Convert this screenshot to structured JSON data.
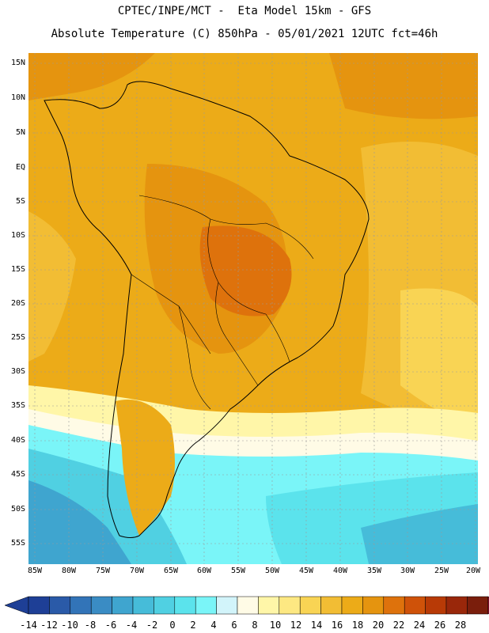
{
  "header": {
    "line1": "CPTEC/INPE/MCT -  Eta Model 15km - GFS",
    "line2": "Absolute Temperature (C) 850hPa - 05/01/2021 12UTC fct=46h"
  },
  "map": {
    "region": "South America",
    "lat_labels": [
      "15N",
      "10N",
      "5N",
      "EQ",
      "5S",
      "10S",
      "15S",
      "20S",
      "25S",
      "30S",
      "35S",
      "40S",
      "45S",
      "50S",
      "55S"
    ],
    "lon_labels": [
      "85W",
      "80W",
      "75W",
      "70W",
      "65W",
      "60W",
      "55W",
      "50W",
      "45W",
      "40W",
      "35W",
      "30W",
      "25W",
      "20W"
    ]
  },
  "colorbar": {
    "labels": [
      "-14",
      "-12",
      "-10",
      "-8",
      "-6",
      "-4",
      "-2",
      "0",
      "2",
      "4",
      "6",
      "8",
      "10",
      "12",
      "14",
      "16",
      "18",
      "20",
      "22",
      "24",
      "26",
      "28"
    ],
    "colors": [
      "#1e3f96",
      "#2a5aa8",
      "#3274b8",
      "#3a8cc4",
      "#3fa5cf",
      "#46bcd9",
      "#50d0e2",
      "#5be3ec",
      "#7af5f8",
      "#d2f4fa",
      "#fffbe6",
      "#fff6a8",
      "#fde882",
      "#f9d454",
      "#f2bd34",
      "#ecab18",
      "#e5940f",
      "#de720c",
      "#cf5209",
      "#b83a06",
      "#99270a",
      "#7a1e0c"
    ],
    "low_color": "#1e3f96",
    "high_color": "#8a0d2e"
  }
}
